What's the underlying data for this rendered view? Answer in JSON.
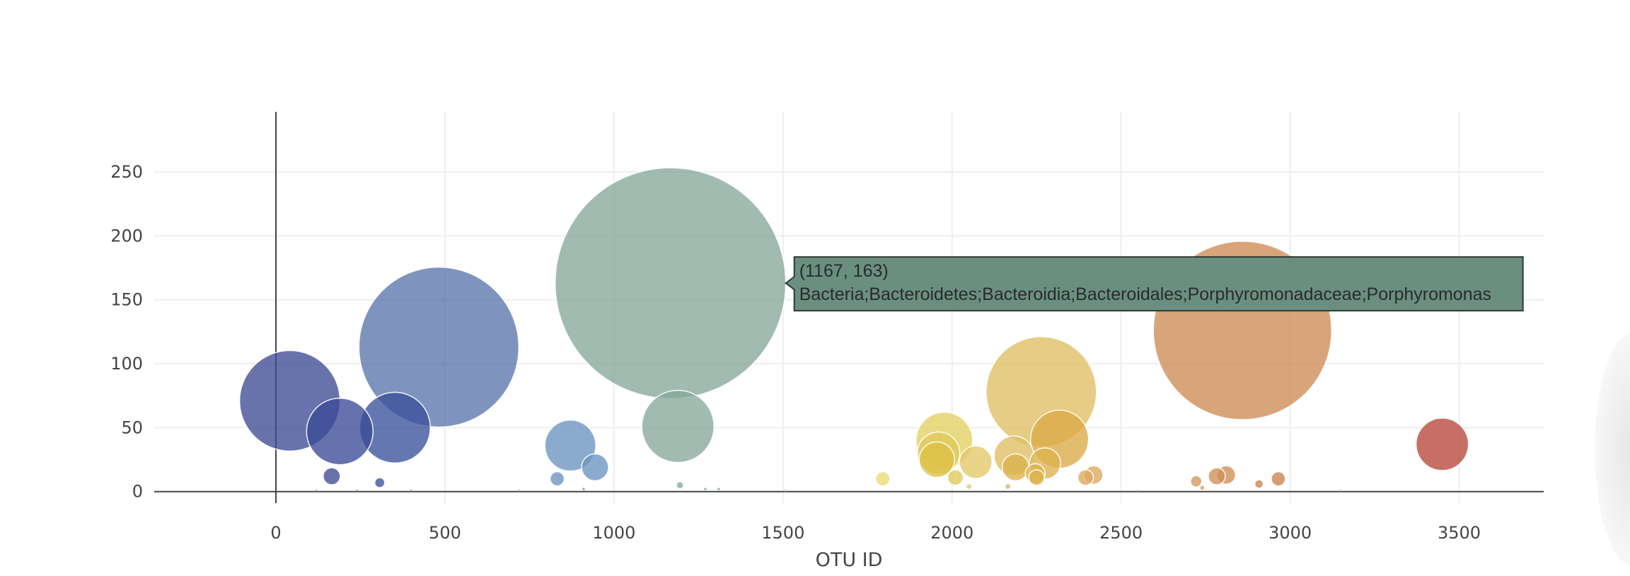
{
  "chart_data": {
    "type": "scatter",
    "subtype": "bubble",
    "title": "",
    "xlabel": "OTU ID",
    "ylabel": "",
    "xlim": [
      -360,
      3750
    ],
    "ylim": [
      -9,
      297
    ],
    "x_ticks": [
      0,
      500,
      1000,
      1500,
      2000,
      2500,
      3000,
      3500
    ],
    "y_ticks": [
      0,
      50,
      100,
      150,
      200,
      250
    ],
    "grid": true,
    "legend": "none",
    "colorscale_hint": "Earth",
    "points": [
      {
        "x": 41,
        "y": 71,
        "size": 71,
        "color": "#3e4a93"
      },
      {
        "x": 189,
        "y": 47,
        "size": 47,
        "color": "#3b4a96"
      },
      {
        "x": 352,
        "y": 50,
        "size": 50,
        "color": "#3a519a"
      },
      {
        "x": 482,
        "y": 113,
        "size": 113,
        "color": "#5a74ab"
      },
      {
        "x": 165,
        "y": 12,
        "size": 12,
        "color": "#3e4a93"
      },
      {
        "x": 307,
        "y": 7,
        "size": 7,
        "color": "#3a519a"
      },
      {
        "x": 871,
        "y": 36,
        "size": 36,
        "color": "#6a93c0"
      },
      {
        "x": 944,
        "y": 19,
        "size": 19,
        "color": "#6a93c0"
      },
      {
        "x": 832,
        "y": 10,
        "size": 10,
        "color": "#6a93c0"
      },
      {
        "x": 1167,
        "y": 163,
        "size": 163,
        "color": "#87a89b"
      },
      {
        "x": 1189,
        "y": 51,
        "size": 51,
        "color": "#87a89b"
      },
      {
        "x": 1195,
        "y": 5,
        "size": 5,
        "color": "#87a89b"
      },
      {
        "x": 1795,
        "y": 10,
        "size": 10,
        "color": "#e8da6e"
      },
      {
        "x": 1977,
        "y": 40,
        "size": 40,
        "color": "#e3cf62"
      },
      {
        "x": 1960,
        "y": 30,
        "size": 30,
        "color": "#e0c95a"
      },
      {
        "x": 1955,
        "y": 25,
        "size": 25,
        "color": "#ddc145"
      },
      {
        "x": 2070,
        "y": 23,
        "size": 23,
        "color": "#e3c869"
      },
      {
        "x": 2010,
        "y": 11,
        "size": 11,
        "color": "#e0c95a"
      },
      {
        "x": 2264,
        "y": 78,
        "size": 78,
        "color": "#dfbe62"
      },
      {
        "x": 2318,
        "y": 41,
        "size": 41,
        "color": "#dbaa46"
      },
      {
        "x": 2183,
        "y": 28,
        "size": 28,
        "color": "#dfbe62"
      },
      {
        "x": 2188,
        "y": 19,
        "size": 19,
        "color": "#dbb24c"
      },
      {
        "x": 2275,
        "y": 22,
        "size": 22,
        "color": "#dbb24c"
      },
      {
        "x": 2246,
        "y": 14,
        "size": 14,
        "color": "#dbb24c"
      },
      {
        "x": 2250,
        "y": 11,
        "size": 11,
        "color": "#dbb24c"
      },
      {
        "x": 2395,
        "y": 11,
        "size": 11,
        "color": "#dba85c"
      },
      {
        "x": 2419,
        "y": 13,
        "size": 13,
        "color": "#dba85c"
      },
      {
        "x": 2859,
        "y": 126,
        "size": 126,
        "color": "#cd8a55"
      },
      {
        "x": 2722,
        "y": 8,
        "size": 8,
        "color": "#d49760"
      },
      {
        "x": 2783,
        "y": 12,
        "size": 12,
        "color": "#d08e55"
      },
      {
        "x": 2811,
        "y": 13,
        "size": 13,
        "color": "#d08e55"
      },
      {
        "x": 2908,
        "y": 6,
        "size": 6,
        "color": "#c98350"
      },
      {
        "x": 2965,
        "y": 10,
        "size": 10,
        "color": "#c98350"
      },
      {
        "x": 3450,
        "y": 37,
        "size": 37,
        "color": "#b9463a"
      },
      {
        "x": 120,
        "y": 1,
        "size": 1,
        "color": "#3e4a93"
      },
      {
        "x": 240,
        "y": 1,
        "size": 1,
        "color": "#3a519a"
      },
      {
        "x": 400,
        "y": 1,
        "size": 1,
        "color": "#3a519a"
      },
      {
        "x": 720,
        "y": 1,
        "size": 1,
        "color": "#6a93c0"
      },
      {
        "x": 910,
        "y": 2,
        "size": 2,
        "color": "#6a93c0"
      },
      {
        "x": 1270,
        "y": 2,
        "size": 2,
        "color": "#87a89b"
      },
      {
        "x": 1310,
        "y": 2,
        "size": 2,
        "color": "#87a89b"
      },
      {
        "x": 1505,
        "y": 1,
        "size": 1,
        "color": "#a3b6a0"
      },
      {
        "x": 2050,
        "y": 4,
        "size": 4,
        "color": "#e0c95a"
      },
      {
        "x": 2165,
        "y": 4,
        "size": 4,
        "color": "#dbb24c"
      },
      {
        "x": 2550,
        "y": 1,
        "size": 1,
        "color": "#dba85c"
      },
      {
        "x": 2740,
        "y": 3,
        "size": 3,
        "color": "#d49760"
      },
      {
        "x": 3150,
        "y": 1,
        "size": 1,
        "color": "#c98350"
      }
    ],
    "hover": {
      "x": 1167,
      "y": 163,
      "coord_text": "(1167, 163)",
      "label": "Bacteria;Bacteroidetes;Bacteroidia;Bacteroidales;Porphyromonadaceae;Porphyromonas",
      "bg_color": "#6a8f80",
      "border_color": "#2c3b35"
    }
  }
}
